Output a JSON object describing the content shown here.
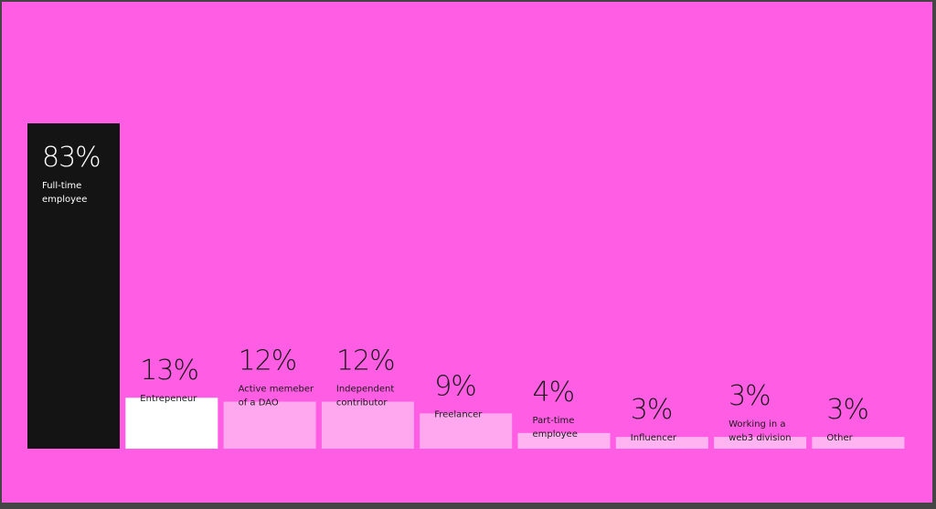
{
  "colors": {
    "background": "#ff5de3",
    "frame": "#454545",
    "highlight_bar": "#141414",
    "highlight_text": "#ffffff",
    "bar_entrepreneur": "#ffffff",
    "bar_light": "#ffa8ef",
    "bar_lighter": "#ffb3f1",
    "text": "#1a1a1a"
  },
  "chart_data": {
    "type": "bar",
    "categories": [
      "Full-time employee",
      "Entrepeneur",
      "Active memeber of a DAO",
      "Independent contributor",
      "Freelancer",
      "Part-time employee",
      "Influencer",
      "Working in a web3 division",
      "Other"
    ],
    "values": [
      83,
      13,
      12,
      12,
      9,
      4,
      3,
      3,
      3
    ],
    "value_labels": [
      "83%",
      "13%",
      "12%",
      "12%",
      "9%",
      "4%",
      "3%",
      "3%",
      "3%"
    ],
    "label_lines": [
      [
        "Full-time",
        "employee"
      ],
      [
        "Entrepeneur"
      ],
      [
        "Active memeber",
        "of a DAO"
      ],
      [
        "Independent",
        "contributor"
      ],
      [
        "Freelancer"
      ],
      [
        "Part-time",
        "employee"
      ],
      [
        "Influencer"
      ],
      [
        "Working in a",
        "web3 division"
      ],
      [
        "Other"
      ]
    ],
    "unit": "%",
    "ylim": [
      0,
      83
    ],
    "grid": false,
    "legend": "none"
  }
}
